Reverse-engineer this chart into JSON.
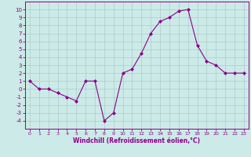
{
  "x": [
    0,
    1,
    2,
    3,
    4,
    5,
    6,
    7,
    8,
    9,
    10,
    11,
    12,
    13,
    14,
    15,
    16,
    17,
    18,
    19,
    20,
    21,
    22,
    23
  ],
  "y": [
    1,
    0,
    0,
    -0.5,
    -1,
    -1.5,
    1,
    1,
    -4,
    -3,
    2,
    2.5,
    4.5,
    7,
    8.5,
    9,
    9.8,
    10,
    5.5,
    3.5,
    3,
    2,
    2,
    2
  ],
  "line_color": "#8B008B",
  "marker": "D",
  "marker_size": 2,
  "bg_color": "#cceae7",
  "grid_color": "#aacccc",
  "xlabel": "Windchill (Refroidissement éolien,°C)",
  "ylim": [
    -5,
    11
  ],
  "xlim": [
    -0.5,
    23.5
  ],
  "yticks": [
    -4,
    -3,
    -2,
    -1,
    0,
    1,
    2,
    3,
    4,
    5,
    6,
    7,
    8,
    9,
    10
  ],
  "xticks": [
    0,
    1,
    2,
    3,
    4,
    5,
    6,
    7,
    8,
    9,
    10,
    11,
    12,
    13,
    14,
    15,
    16,
    17,
    18,
    19,
    20,
    21,
    22,
    23
  ],
  "axis_color": "#8B008B",
  "label_color": "#8B008B",
  "xlabel_fontsize": 5.5,
  "tick_fontsize_x": 4.5,
  "tick_fontsize_y": 5.0,
  "linewidth": 0.8
}
